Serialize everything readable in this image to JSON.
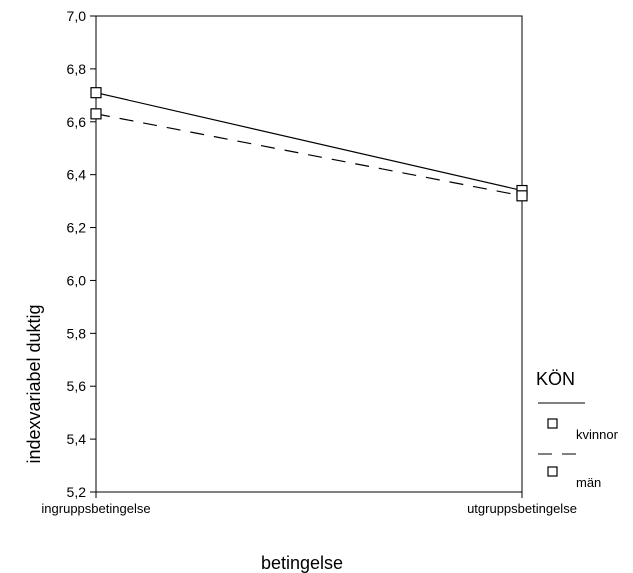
{
  "chart_data": {
    "type": "line",
    "categories": [
      "ingruppsbetingelse",
      "utgruppsbetingelse"
    ],
    "xlabel": "betingelse",
    "ylabel": "indexvariabel duktig",
    "ylim": [
      5.2,
      7.0
    ],
    "yticks": [
      "5,2",
      "5,4",
      "5,6",
      "5,8",
      "6,0",
      "6,2",
      "6,4",
      "6,6",
      "6,8",
      "7,0"
    ],
    "ytick_values": [
      5.2,
      5.4,
      5.6,
      5.8,
      6.0,
      6.2,
      6.4,
      6.6,
      6.8,
      7.0
    ],
    "grid": false,
    "legend": {
      "title": "KÖN",
      "placement": "right",
      "entries": [
        "kvinnor",
        "män"
      ]
    },
    "series": [
      {
        "name": "kvinnor",
        "line_style": "solid",
        "marker": "square",
        "color": "#000000",
        "values": [
          6.71,
          6.34
        ]
      },
      {
        "name": "män",
        "line_style": "dashed",
        "marker": "square",
        "color": "#000000",
        "values": [
          6.63,
          6.32
        ]
      }
    ]
  }
}
